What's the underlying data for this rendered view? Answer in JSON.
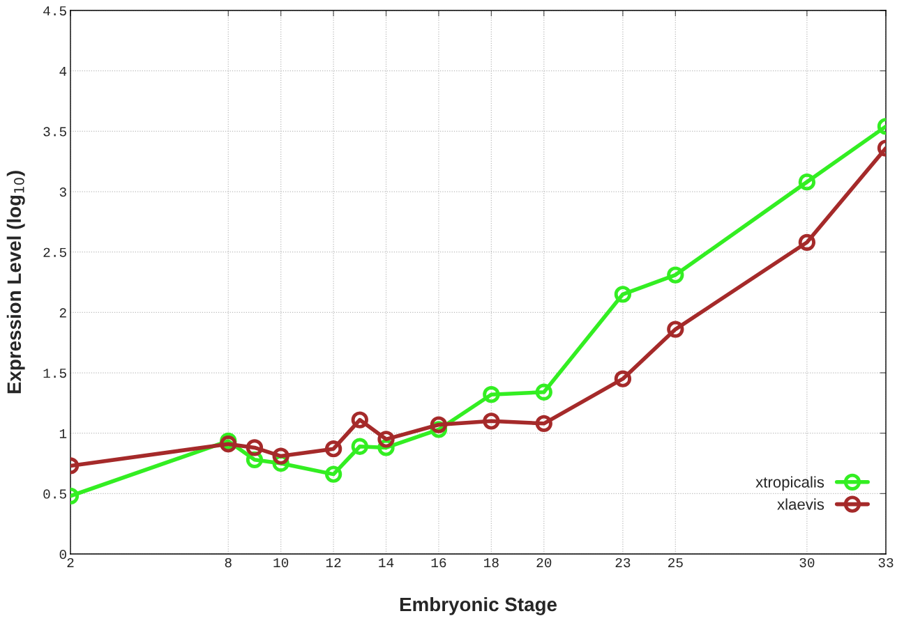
{
  "chart_data": {
    "type": "line",
    "xlabel": "Embryonic Stage",
    "ylabel": "Expression Level (log$_{10}$)",
    "x": [
      2,
      8,
      9,
      10,
      12,
      13,
      14,
      16,
      18,
      20,
      23,
      25,
      30,
      33
    ],
    "series": [
      {
        "name": "xtropicalis",
        "color": "#33ee22",
        "values": [
          0.48,
          0.935,
          0.78,
          0.75,
          0.66,
          0.89,
          0.88,
          1.03,
          1.32,
          1.34,
          2.15,
          2.31,
          3.08,
          3.54
        ]
      },
      {
        "name": "xlaevis",
        "color": "#a52a2a",
        "values": [
          0.73,
          0.91,
          0.88,
          0.81,
          0.87,
          1.11,
          0.95,
          1.07,
          1.1,
          1.08,
          1.45,
          1.86,
          2.58,
          3.36
        ]
      }
    ],
    "xlim": [
      2,
      33
    ],
    "xticks": [
      2,
      8,
      10,
      12,
      14,
      16,
      18,
      20,
      23,
      25,
      30,
      33
    ],
    "ylim": [
      0,
      4.5
    ],
    "yticks": [
      0,
      0.5,
      1,
      1.5,
      2,
      2.5,
      3,
      3.5,
      4,
      4.5
    ],
    "grid": true,
    "legend": "bottom right",
    "marker": "circle",
    "line_style": "solid"
  }
}
